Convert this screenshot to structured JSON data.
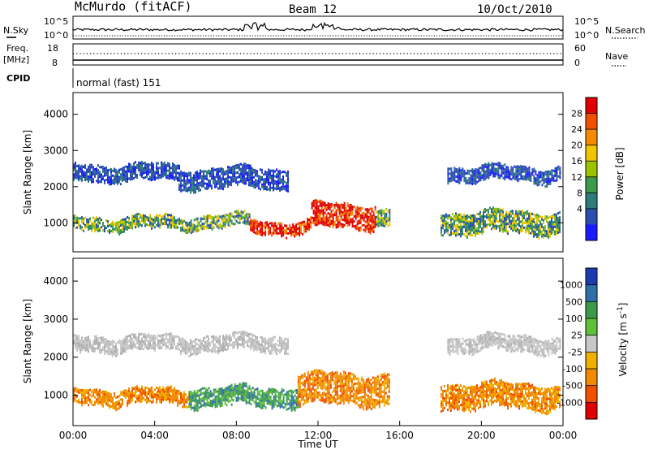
{
  "header": {
    "station": "McMurdo (fitACF)",
    "beam": "Beam 12",
    "date": "10/Oct/2010"
  },
  "top_panels": {
    "nsky_label": "N.Sky",
    "nsky_ticks": [
      "10^5",
      "10^0"
    ],
    "nsearch_label": "N.Search",
    "nsearch_ticks": [
      "10^5",
      "10^0"
    ],
    "freq_label": "Freq.",
    "freq_unit": "[MHz]",
    "freq_ticks": [
      "18",
      "8"
    ],
    "nave_label": "Nave",
    "nave_ticks": [
      "60",
      "0"
    ],
    "cpid_label": "CPID",
    "cpid_value": "normal (fast) 151"
  },
  "chart_data": [
    {
      "type": "heatmap",
      "name": "power",
      "ylabel": "Slant Range [km]",
      "yticks": [
        "4000",
        "3000",
        "2000",
        "1000"
      ],
      "ylim": [
        200,
        4600
      ],
      "colorbar_label": "Power [dB]",
      "colorbar_ticks": [
        "28",
        "24",
        "20",
        "16",
        "12",
        "8",
        "4"
      ],
      "colorbar_colors": [
        "#e00000",
        "#f05000",
        "#f58a00",
        "#f2c400",
        "#9bc400",
        "#3c9a4a",
        "#2e7d78",
        "#2b4fb0",
        "#1a1aff"
      ],
      "bands": [
        {
          "start": "00:00",
          "end": "05:10",
          "range_km": [
            2150,
            2650
          ],
          "level": "low"
        },
        {
          "start": "05:10",
          "end": "10:30",
          "range_km": [
            1950,
            2550
          ],
          "level": "low"
        },
        {
          "start": "00:00",
          "end": "05:40",
          "range_km": [
            800,
            1200
          ],
          "level": "medium"
        },
        {
          "start": "05:40",
          "end": "08:40",
          "range_km": [
            850,
            1250
          ],
          "level": "medium"
        },
        {
          "start": "08:40",
          "end": "11:40",
          "range_km": [
            700,
            1100
          ],
          "level": "high"
        },
        {
          "start": "11:40",
          "end": "14:50",
          "range_km": [
            850,
            1550
          ],
          "level": "high"
        },
        {
          "start": "14:50",
          "end": "15:30",
          "range_km": [
            900,
            1400
          ],
          "level": "medium"
        },
        {
          "start": "18:00",
          "end": "23:50",
          "range_km": [
            700,
            1350
          ],
          "level": "medium"
        },
        {
          "start": "18:20",
          "end": "23:50",
          "range_km": [
            2150,
            2600
          ],
          "level": "low"
        }
      ]
    },
    {
      "type": "heatmap",
      "name": "velocity",
      "ylabel": "Slant Range [km]",
      "yticks": [
        "4000",
        "3000",
        "2000",
        "1000"
      ],
      "ylim": [
        200,
        4600
      ],
      "colorbar_label": "Velocity [m s",
      "colorbar_label_sup": "-1",
      "colorbar_ticks": [
        "1000",
        "500",
        "100",
        "25",
        "-25",
        "-100",
        "-500",
        "-1000"
      ],
      "colorbar_colors": [
        "#1c3cb0",
        "#2f6fa8",
        "#3c9a4a",
        "#5fc03a",
        "#c8c8c8",
        "#f0b000",
        "#f08a00",
        "#f05000",
        "#e00000"
      ],
      "xlabel": "Time UT",
      "xticks": [
        "00:00",
        "04:00",
        "08:00",
        "12:00",
        "16:00",
        "20:00",
        "00:00"
      ],
      "bands": [
        {
          "start": "00:00",
          "end": "10:30",
          "range_km": [
            2150,
            2600
          ],
          "level": "ground"
        },
        {
          "start": "18:20",
          "end": "23:50",
          "range_km": [
            2150,
            2600
          ],
          "level": "ground"
        },
        {
          "start": "00:00",
          "end": "05:40",
          "range_km": [
            750,
            1200
          ],
          "level": "away"
        },
        {
          "start": "05:40",
          "end": "11:00",
          "range_km": [
            700,
            1250
          ],
          "level": "toward"
        },
        {
          "start": "11:00",
          "end": "15:30",
          "range_km": [
            750,
            1600
          ],
          "level": "away"
        },
        {
          "start": "18:00",
          "end": "23:50",
          "range_km": [
            650,
            1350
          ],
          "level": "away"
        }
      ]
    }
  ]
}
